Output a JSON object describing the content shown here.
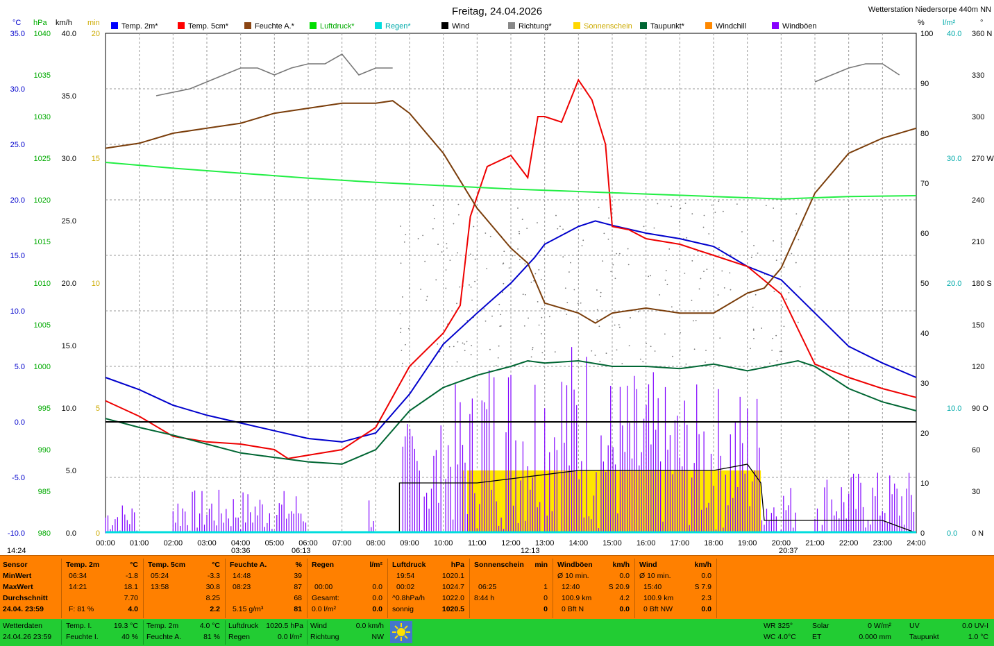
{
  "title": "Freitag, 24.04.2026",
  "station": "Wetterstation Niedersorpe 440m NN",
  "legend": [
    {
      "label": "Temp. 2m*",
      "color": "#0000ff"
    },
    {
      "label": "Temp. 5cm*",
      "color": "#ff0000"
    },
    {
      "label": "Feuchte A.*",
      "color": "#8b4513"
    },
    {
      "label": "Luftdruck*",
      "color": "#00dd00"
    },
    {
      "label": "Regen*",
      "color": "#00dddd"
    },
    {
      "label": "Wind",
      "color": "#000000"
    },
    {
      "label": "Richtung*",
      "color": "#888888"
    },
    {
      "label": "Sonnenschein",
      "color": "#ffd700"
    },
    {
      "label": "Taupunkt*",
      "color": "#006633"
    },
    {
      "label": "Windchill",
      "color": "#ff8800"
    },
    {
      "label": "Windböen",
      "color": "#8800ff"
    }
  ],
  "axes_units": {
    "temp": "°C",
    "press": "hPa",
    "wind": "km/h",
    "sun": "min",
    "hum": "%",
    "rain": "l/m²",
    "dir": "°"
  },
  "sun_events": {
    "sunrise": "06:13",
    "sunset": "20:37",
    "moonrise": "14:24",
    "moonset": "03:36",
    "noon": "12:13"
  },
  "chart_data": {
    "type": "line",
    "x_labels": [
      "00:00",
      "01:00",
      "02:00",
      "03:00",
      "04:00",
      "05:00",
      "06:00",
      "07:00",
      "08:00",
      "09:00",
      "10:00",
      "11:00",
      "12:00",
      "13:00",
      "14:00",
      "15:00",
      "16:00",
      "17:00",
      "18:00",
      "19:00",
      "20:00",
      "21:00",
      "22:00",
      "23:00",
      "24:00"
    ],
    "temp_ticks": [
      "35.0",
      "30.0",
      "25.0",
      "20.0",
      "15.0",
      "10.0",
      "5.0",
      "0.0",
      "-5.0",
      "-10.0"
    ],
    "press_ticks": [
      "1040",
      "1035",
      "1030",
      "1025",
      "1020",
      "1015",
      "1010",
      "1005",
      "1000",
      "995",
      "990",
      "985",
      "980"
    ],
    "wind_ticks": [
      "40.0",
      "35.0",
      "30.0",
      "25.0",
      "20.0",
      "15.0",
      "10.0",
      "5.0",
      "0.0"
    ],
    "sun_ticks": [
      "20",
      "15",
      "10",
      "5",
      "0"
    ],
    "hum_ticks": [
      "100",
      "90",
      "80",
      "70",
      "60",
      "50",
      "40",
      "30",
      "20",
      "10",
      "0"
    ],
    "rain_ticks": [
      "40.0",
      "30.0",
      "20.0",
      "10.0",
      "0.0"
    ],
    "dir_ticks": [
      "360 N",
      "330",
      "300",
      "270 W",
      "240",
      "210",
      "180 S",
      "150",
      "120",
      "90 O",
      "60",
      "30",
      "0 N"
    ],
    "temp_range": [
      -10,
      35
    ],
    "series": [
      {
        "name": "Temp. 2m*",
        "axis": "temp",
        "x": [
          0,
          1,
          2,
          3,
          4,
          5,
          6,
          7,
          8,
          9,
          10,
          11,
          12,
          12.7,
          13,
          14,
          14.5,
          15,
          16,
          17,
          18,
          19,
          20,
          21,
          22,
          23,
          24
        ],
        "y": [
          4.0,
          2.9,
          1.5,
          0.6,
          -0.1,
          -0.8,
          -1.5,
          -1.8,
          -1.0,
          2.5,
          7.0,
          9.8,
          12.5,
          14.8,
          16.0,
          17.6,
          18.1,
          17.7,
          17.0,
          16.5,
          15.8,
          14.0,
          12.8,
          9.8,
          6.8,
          5.3,
          4.0
        ]
      },
      {
        "name": "Temp. 5cm*",
        "axis": "temp",
        "x": [
          0,
          1,
          2,
          3,
          4,
          5,
          5.4,
          6,
          7,
          8,
          9,
          10,
          10.5,
          10.8,
          11.3,
          12,
          12.5,
          12.8,
          13,
          13.5,
          14,
          14.4,
          14.8,
          15,
          15.5,
          16,
          17,
          18,
          19,
          20,
          21,
          22,
          23,
          24
        ],
        "y": [
          1.9,
          0.5,
          -1.3,
          -1.8,
          -2.0,
          -2.5,
          -3.3,
          -3.0,
          -2.5,
          -0.5,
          5.0,
          8.0,
          10.5,
          18.5,
          23.0,
          24.0,
          22.0,
          27.5,
          27.5,
          27.0,
          30.8,
          29.0,
          25.0,
          17.6,
          17.3,
          16.5,
          16.0,
          15.0,
          14.0,
          11.5,
          5.2,
          4.0,
          3.0,
          2.2
        ]
      },
      {
        "name": "Feuchte A.*",
        "axis": "hum",
        "x": [
          0,
          1,
          2,
          3,
          4,
          5,
          6,
          7,
          8,
          8.5,
          9,
          10,
          11,
          12,
          12.5,
          13,
          14,
          14.5,
          15,
          16,
          17,
          18,
          19,
          19.5,
          20,
          21,
          22,
          23,
          24
        ],
        "y": [
          77,
          78,
          80,
          81,
          82,
          84,
          85,
          86,
          86,
          86.5,
          84,
          76,
          65,
          57,
          54,
          46,
          44,
          42,
          44,
          45,
          44,
          44,
          48,
          49,
          53,
          68,
          76,
          79,
          81
        ]
      },
      {
        "name": "Luftdruck*",
        "axis": "press",
        "x": [
          0,
          2,
          4,
          6,
          8,
          10,
          12,
          14,
          16,
          18,
          20,
          22,
          24
        ],
        "y": [
          1024.5,
          1023.8,
          1023.2,
          1022.6,
          1022.1,
          1021.7,
          1021.3,
          1021.0,
          1020.7,
          1020.4,
          1020.1,
          1020.4,
          1020.5
        ]
      },
      {
        "name": "Taupunkt*",
        "axis": "temp",
        "x": [
          0,
          1,
          2,
          3,
          4,
          5,
          6,
          7,
          8,
          9,
          10,
          11,
          12,
          12.5,
          13,
          14,
          15,
          16,
          17,
          18,
          19,
          20,
          20.5,
          21,
          22,
          23,
          24
        ],
        "y": [
          0.3,
          -0.5,
          -1.2,
          -2.0,
          -2.8,
          -3.2,
          -3.6,
          -3.8,
          -2.5,
          1.0,
          3.1,
          4.2,
          5.0,
          5.5,
          5.3,
          5.5,
          5.0,
          5.0,
          4.8,
          5.2,
          4.6,
          5.2,
          5.5,
          5.0,
          3.0,
          1.8,
          1.0
        ]
      }
    ],
    "wind_step": {
      "x": [
        8.7,
        8.7,
        11,
        12.5,
        14,
        15,
        16,
        17,
        18,
        19,
        19.4,
        19.5,
        21,
        22,
        23,
        24
      ],
      "y": [
        0,
        4,
        4,
        4.5,
        5,
        5,
        5,
        5,
        5,
        5.5,
        4,
        1,
        1,
        1,
        1,
        0
      ]
    },
    "sunshine": {
      "x_start": 10.7,
      "x_end": 19.4,
      "level_min": 2.5
    },
    "gust_bursts": [
      [
        0,
        1,
        2.5
      ],
      [
        2,
        4,
        3.5
      ],
      [
        4,
        6,
        3.5
      ],
      [
        7.8,
        8,
        3.5
      ],
      [
        8.8,
        10,
        9
      ],
      [
        10,
        11,
        12
      ],
      [
        11,
        13,
        15
      ],
      [
        13,
        14.6,
        16
      ],
      [
        14.6,
        16.5,
        13
      ],
      [
        16.5,
        18,
        12
      ],
      [
        18,
        19.5,
        12
      ],
      [
        19.5,
        20.5,
        4
      ],
      [
        21,
        24,
        5
      ]
    ],
    "direction": [
      {
        "x": [
          1.5,
          2.5,
          3,
          3.5,
          4,
          4.5,
          5,
          5.5,
          6,
          6.5,
          7,
          7.5,
          8,
          8.5
        ],
        "y": [
          315,
          320,
          325,
          330,
          335,
          335,
          330,
          335,
          338,
          338,
          345,
          330,
          335,
          335
        ]
      },
      {
        "x": [
          21,
          21.5,
          22,
          22.5,
          23,
          23.5
        ],
        "y": [
          325,
          330,
          335,
          338,
          338,
          330
        ]
      }
    ],
    "zero_line_temp": 0
  },
  "stats": {
    "sensor": {
      "label": "Sensor",
      "min": "MinWert",
      "max": "MaxWert",
      "avg": "Durchschnitt",
      "now": "24.04. 23:59"
    },
    "t2m": {
      "head": "Temp. 2m",
      "unit": "°C",
      "min_t": "06:34",
      "min": "-1.8",
      "max_t": "14:21",
      "max": "18.1",
      "avg": "7.70",
      "now_f": "F: 81 %",
      "now": "4.0"
    },
    "t5": {
      "head": "Temp. 5cm",
      "unit": "°C",
      "min_t": "05:24",
      "min": "-3.3",
      "max_t": "13:58",
      "max": "30.8",
      "avg": "8.25",
      "now": "2.2"
    },
    "hum": {
      "head": "Feuchte A.",
      "unit": "%",
      "min_t": "14:48",
      "min": "39",
      "max_t": "08:23",
      "max": "87",
      "avg": "68",
      "now_abs": "5.15 g/m³",
      "now": "81"
    },
    "rain": {
      "head": "Regen",
      "unit": "l/m²",
      "r1_t": "00:00",
      "r1": "0.0",
      "r2_t": "Gesamt:",
      "r2": "0.0",
      "now_t": "0.0 l/m²",
      "now": "0.0"
    },
    "press": {
      "head": "Luftdruck",
      "unit": "hPa",
      "min_t": "19:54",
      "min": "1020.1",
      "max_t": "00:02",
      "max": "1024.7",
      "avg_t": "^0.8hPa/h",
      "avg": "1022.0",
      "now_t": "sonnig",
      "now": "1020.5"
    },
    "sun": {
      "head": "Sonnenschein",
      "unit": "min",
      "max_t": "06:25",
      "max": "1",
      "avg_t": "8:44 h",
      "avg": "0",
      "now": "0"
    },
    "gust": {
      "head": "Windböen",
      "unit": "km/h",
      "r1_t": "Ø 10 min.",
      "r1": "0.0",
      "r2_t": "12:40",
      "r2": "S 20.9",
      "r3_t": "100.9 km",
      "r3": "4.2",
      "r4_t": "0 Bft N",
      "r4": "0.0"
    },
    "wind": {
      "head": "Wind",
      "unit": "km/h",
      "r1_t": "Ø 10 min.",
      "r1": "0.0",
      "r2_t": "15:40",
      "r2": "S 7.9",
      "r3_t": "100.9 km",
      "r3": "2.3",
      "r4_t": "0 Bft NW",
      "r4": "0.0"
    }
  },
  "current": {
    "label": "Wetterdaten",
    "time": "24.04.26 23:59",
    "ti_l": "Temp. I.",
    "ti": "19.3 °C",
    "fi_l": "Feuchte I.",
    "fi": "40 %",
    "t2_l": "Temp. 2m",
    "t2": "4.0 °C",
    "fa_l": "Feuchte A.",
    "fa": "81 %",
    "lp_l": "Luftdruck",
    "lp": "1020.5 hPa",
    "rg_l": "Regen",
    "rg": "0.0 l/m²",
    "w_l": "Wind",
    "w": "0.0 km/h",
    "r_l": "Richtung",
    "r": "NW",
    "wr": "WR 325°",
    "wc": "WC 4.0°C",
    "sol_l": "Solar",
    "sol": "0 W/m²",
    "et_l": "ET",
    "et": "0.000 mm",
    "uv_l": "UV",
    "uv": "0.0 UV-I",
    "tp_l": "Taupunkt",
    "tp": "1.0 °C"
  }
}
